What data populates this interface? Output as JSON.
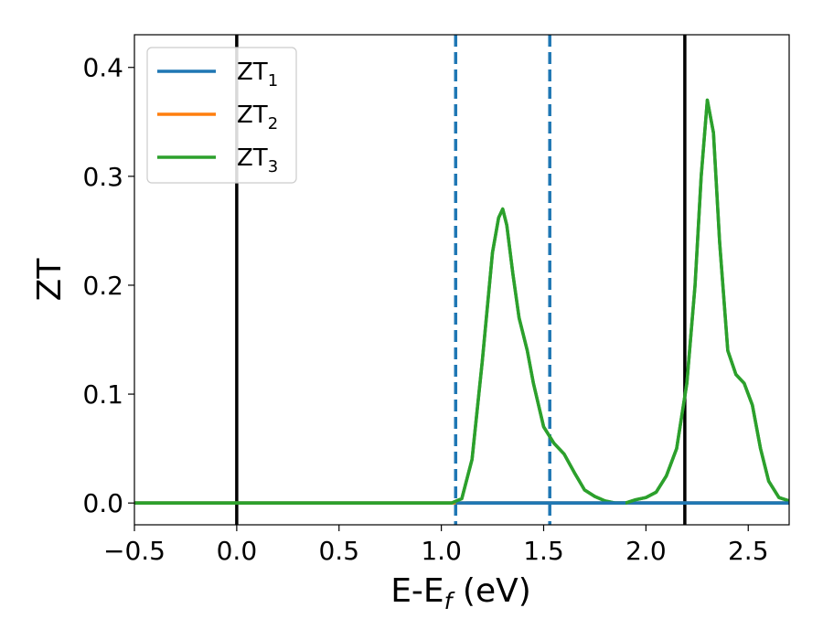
{
  "chart_data": {
    "type": "line",
    "xlabel": "E-E",
    "xlabel_sub": "f",
    "xlabel_unit": " (eV)",
    "ylabel": "ZT",
    "xlim": [
      -0.5,
      2.7
    ],
    "ylim": [
      -0.02,
      0.43
    ],
    "xticks": [
      -0.5,
      0.0,
      0.5,
      1.0,
      1.5,
      2.0,
      2.5
    ],
    "xtick_labels": [
      "−0.5",
      "0.0",
      "0.5",
      "1.0",
      "1.5",
      "2.0",
      "2.5"
    ],
    "yticks": [
      0.0,
      0.1,
      0.2,
      0.3,
      0.4
    ],
    "ytick_labels": [
      "0.0",
      "0.1",
      "0.2",
      "0.3",
      "0.4"
    ],
    "grid": false,
    "legend_position": "top-left",
    "series": [
      {
        "name": "ZT",
        "name_sub": "1",
        "color": "#1f77b4",
        "x": [
          -0.5,
          2.7
        ],
        "y": [
          0.0,
          0.0
        ]
      },
      {
        "name": "ZT",
        "name_sub": "2",
        "color": "#ff7f0e",
        "x": [
          -0.5,
          2.7
        ],
        "y": [
          0.0,
          0.0
        ]
      },
      {
        "name": "ZT",
        "name_sub": "3",
        "color": "#2ca02c",
        "x": [
          -0.5,
          1.0,
          1.05,
          1.1,
          1.15,
          1.2,
          1.25,
          1.28,
          1.3,
          1.32,
          1.35,
          1.38,
          1.42,
          1.45,
          1.5,
          1.55,
          1.6,
          1.65,
          1.7,
          1.75,
          1.8,
          1.85,
          1.9,
          1.95,
          2.0,
          2.05,
          2.1,
          2.15,
          2.2,
          2.24,
          2.27,
          2.3,
          2.33,
          2.36,
          2.4,
          2.44,
          2.48,
          2.52,
          2.56,
          2.6,
          2.65,
          2.7
        ],
        "y": [
          0.0,
          0.0,
          0.0,
          0.004,
          0.04,
          0.13,
          0.23,
          0.262,
          0.27,
          0.255,
          0.21,
          0.17,
          0.14,
          0.11,
          0.07,
          0.055,
          0.045,
          0.028,
          0.012,
          0.006,
          0.002,
          0.0,
          0.0,
          0.003,
          0.005,
          0.01,
          0.025,
          0.05,
          0.11,
          0.2,
          0.3,
          0.37,
          0.34,
          0.24,
          0.14,
          0.118,
          0.11,
          0.09,
          0.05,
          0.02,
          0.005,
          0.002
        ]
      }
    ],
    "vlines": [
      {
        "x": 0.0,
        "style": "solid",
        "color": "#000000"
      },
      {
        "x": 2.19,
        "style": "solid",
        "color": "#000000"
      },
      {
        "x": 1.07,
        "style": "dashed",
        "color": "#1f77b4"
      },
      {
        "x": 1.53,
        "style": "dashed",
        "color": "#1f77b4"
      }
    ]
  }
}
